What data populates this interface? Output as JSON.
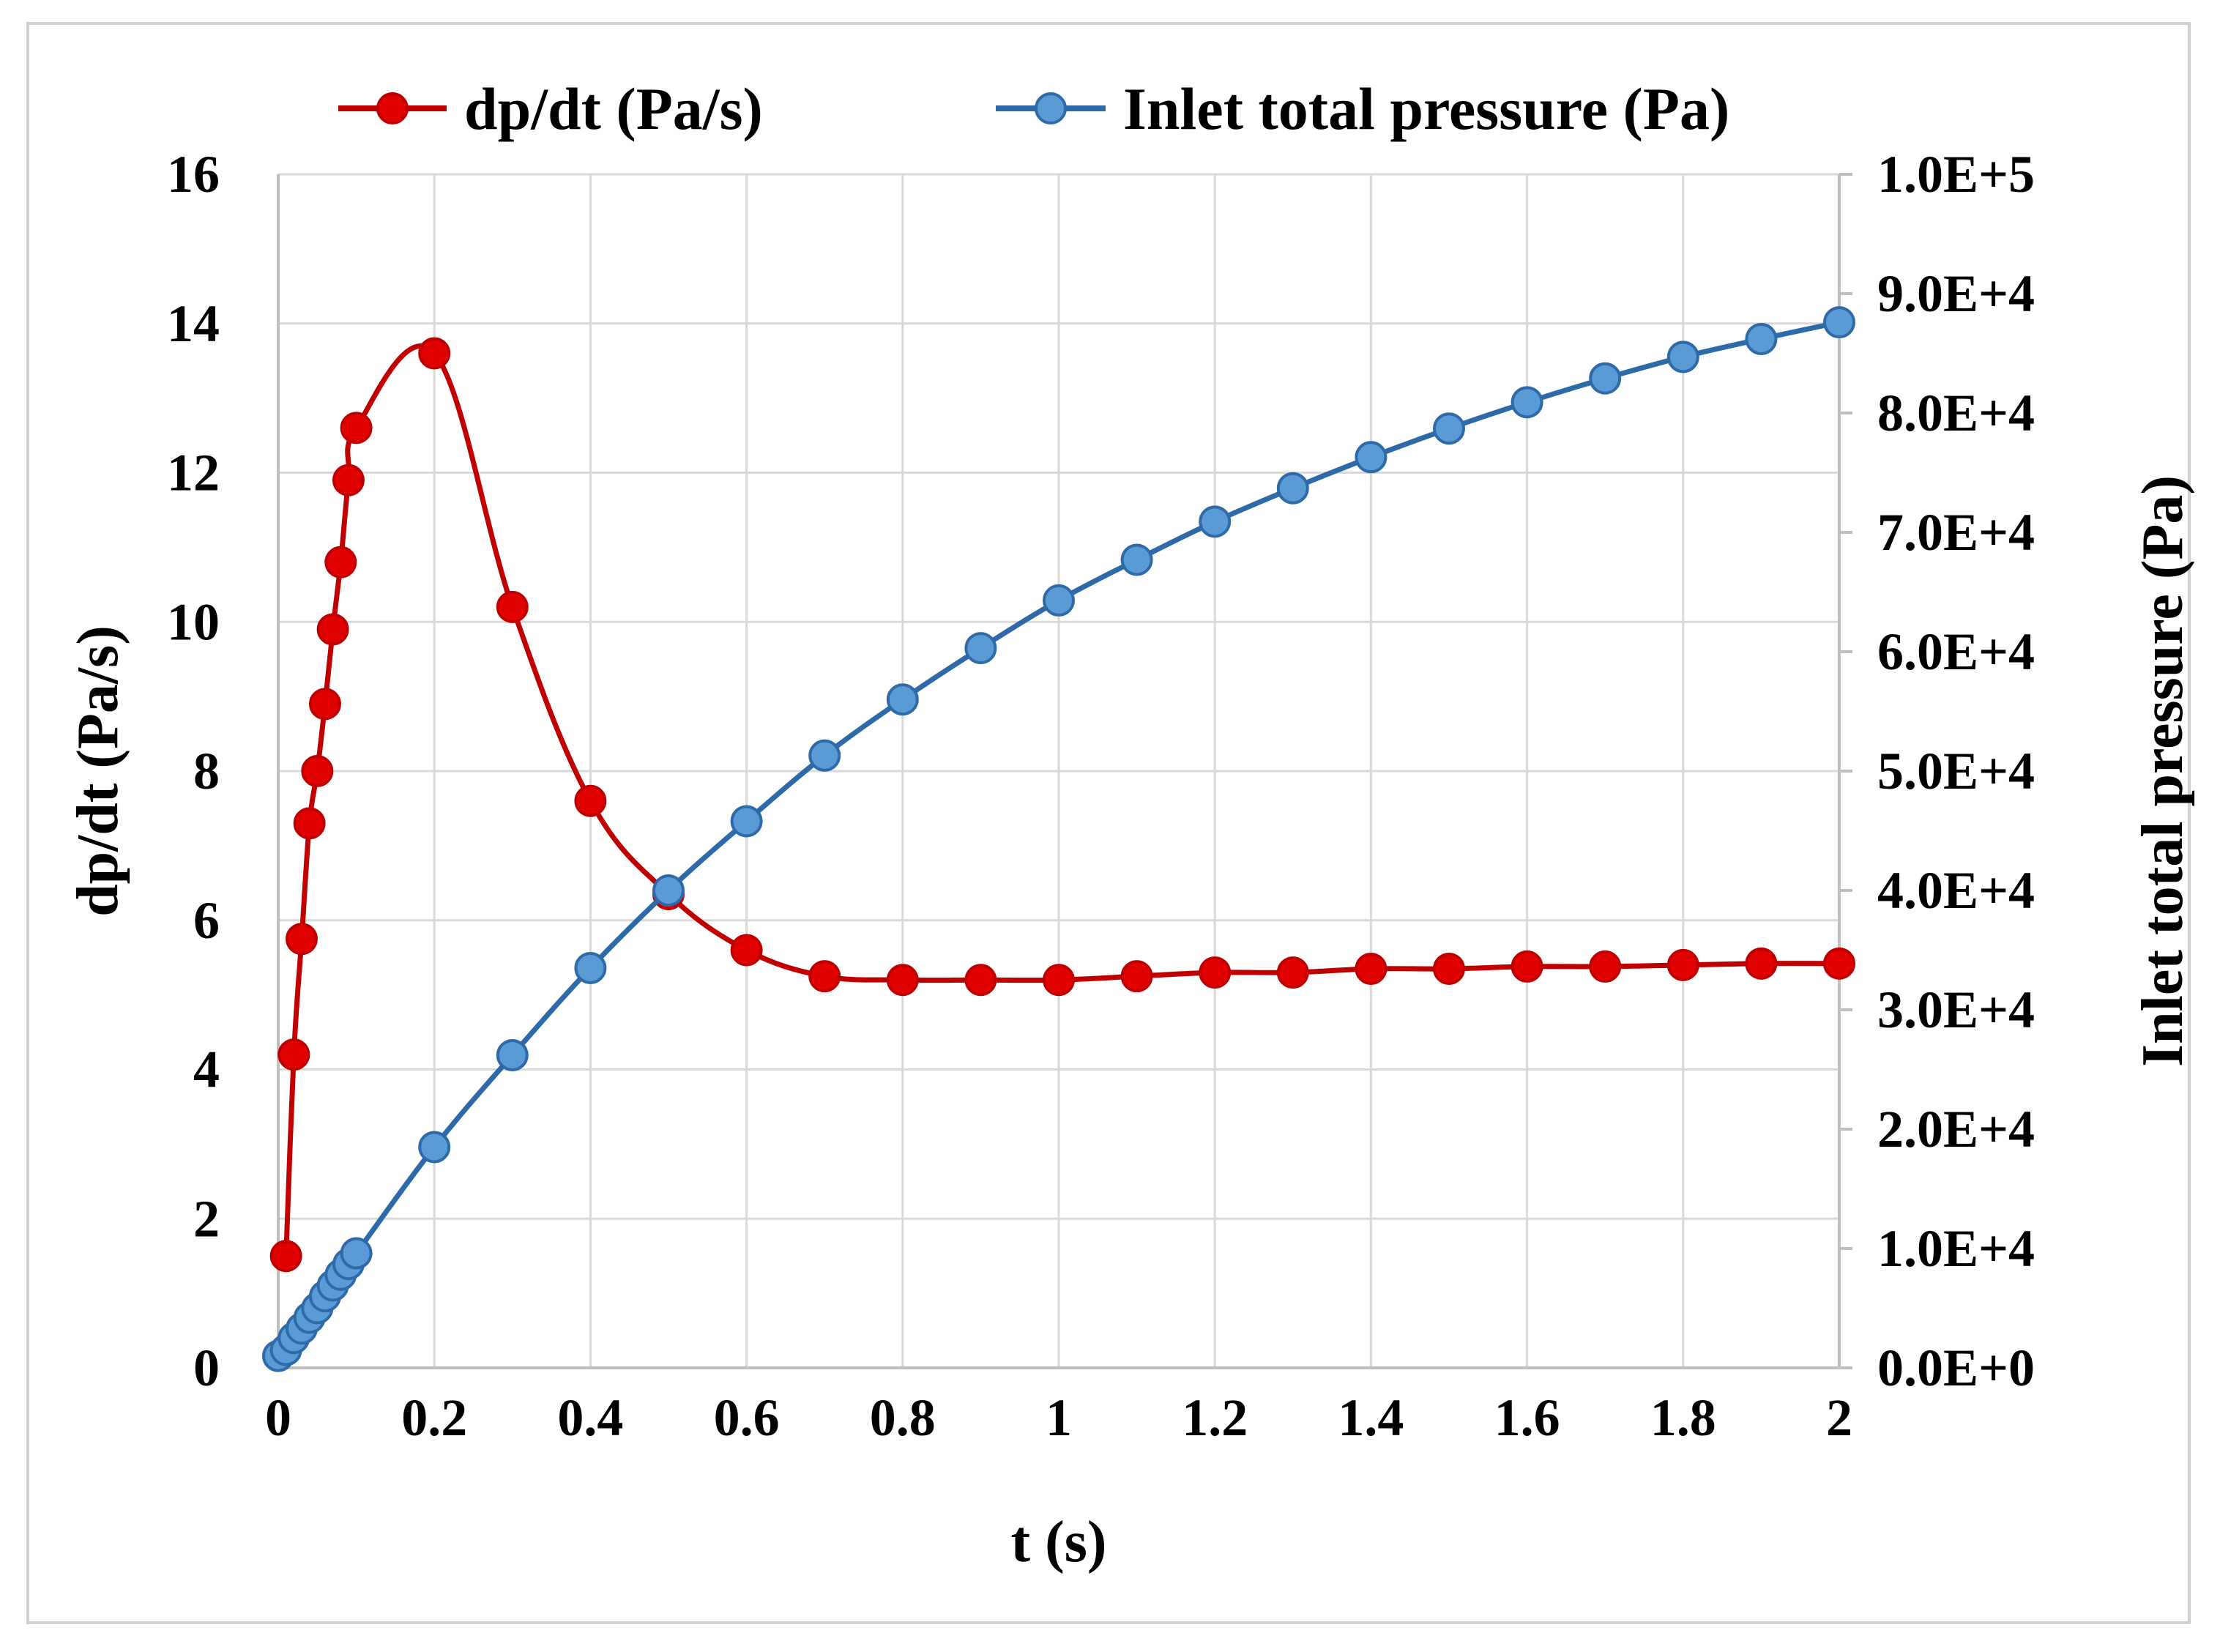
{
  "chart_data": {
    "type": "line",
    "xlabel": "t (s)",
    "ylabel": "dp/dt (Pa/s)",
    "y2label": "Inlet total pressure (Pa)",
    "xlim": [
      0,
      2
    ],
    "ylim": [
      0,
      16
    ],
    "y2lim": [
      0,
      100000
    ],
    "grid": true,
    "legend_position": "top",
    "x_ticks": [
      "0",
      "0.2",
      "0.4",
      "0.6",
      "0.8",
      "1",
      "1.2",
      "1.4",
      "1.6",
      "1.8",
      "2"
    ],
    "x_tick_values": [
      0,
      0.2,
      0.4,
      0.6,
      0.8,
      1.0,
      1.2,
      1.4,
      1.6,
      1.8,
      2.0
    ],
    "y_ticks": [
      "0",
      "2",
      "4",
      "6",
      "8",
      "10",
      "12",
      "14",
      "16"
    ],
    "y_tick_values": [
      0,
      2,
      4,
      6,
      8,
      10,
      12,
      14,
      16
    ],
    "y2_ticks": [
      "0.0E+0",
      "1.0E+4",
      "2.0E+4",
      "3.0E+4",
      "4.0E+4",
      "5.0E+4",
      "6.0E+4",
      "7.0E+4",
      "8.0E+4",
      "9.0E+4",
      "1.0E+5"
    ],
    "y2_tick_values": [
      0,
      10000,
      20000,
      30000,
      40000,
      50000,
      60000,
      70000,
      80000,
      90000,
      100000
    ],
    "series": [
      {
        "name": "dp/dt (Pa/s)",
        "axis": "left",
        "color": "#c00000",
        "marker_color": "#e00000",
        "x": [
          0.01,
          0.02,
          0.03,
          0.04,
          0.05,
          0.06,
          0.07,
          0.08,
          0.09,
          0.1,
          0.2,
          0.3,
          0.4,
          0.5,
          0.6,
          0.7,
          0.8,
          0.9,
          1.0,
          1.1,
          1.2,
          1.3,
          1.4,
          1.5,
          1.6,
          1.7,
          1.8,
          1.9,
          2.0
        ],
        "y": [
          1.5,
          4.2,
          5.75,
          7.3,
          8.0,
          8.9,
          9.9,
          10.8,
          11.9,
          12.6,
          13.6,
          10.2,
          7.6,
          6.35,
          5.6,
          5.25,
          5.2,
          5.2,
          5.2,
          5.25,
          5.3,
          5.3,
          5.35,
          5.35,
          5.38,
          5.38,
          5.4,
          5.42,
          5.42
        ]
      },
      {
        "name": "Inlet total pressure (Pa)",
        "axis": "right",
        "color": "#2e6aa8",
        "marker_color": "#5b9bd5",
        "x": [
          0.0,
          0.01,
          0.02,
          0.03,
          0.04,
          0.05,
          0.06,
          0.07,
          0.08,
          0.09,
          0.1,
          0.2,
          0.3,
          0.4,
          0.5,
          0.6,
          0.7,
          0.8,
          0.9,
          1.0,
          1.1,
          1.2,
          1.3,
          1.4,
          1.5,
          1.6,
          1.7,
          1.8,
          1.9,
          2.0
        ],
        "y": [
          1000,
          1500,
          2500,
          3300,
          4200,
          5000,
          6000,
          6900,
          7800,
          8700,
          9600,
          18500,
          26200,
          33500,
          40000,
          45800,
          51300,
          56000,
          60300,
          64300,
          67700,
          70900,
          73700,
          76300,
          78700,
          80900,
          82900,
          84700,
          86200,
          87600
        ]
      }
    ]
  }
}
